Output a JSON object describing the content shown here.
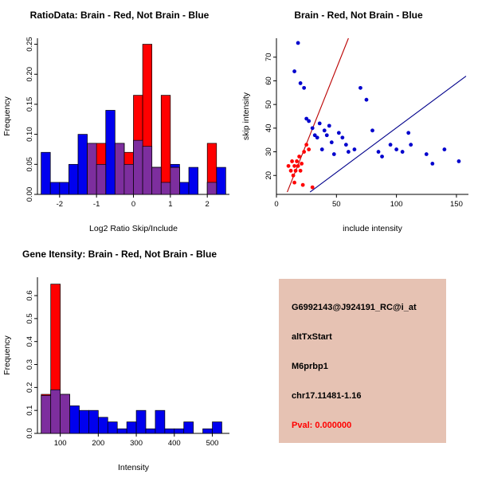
{
  "figure": {
    "background": "#FFFFFF"
  },
  "info_box": {
    "background": "#E6C2B3",
    "text_color": "#000000",
    "lines": [
      "G6992143@J924191_RC@i_at",
      "altTxStart",
      "M6prbp1",
      "chr17.11481-1.16"
    ],
    "pval": "Pval: 0.000000",
    "pval_color": "#FF0000"
  },
  "chart_data": [
    {
      "type": "bar",
      "subtype": "overlaid_histogram",
      "title": "RatioData: Brain - Red, Not Brain - Blue",
      "xlabel": "Log2 Ratio Skip/Include",
      "ylabel": "Frequency",
      "xlim": [
        -2.6,
        2.6
      ],
      "ylim": [
        0,
        0.26
      ],
      "xticks": [
        -2,
        -1,
        0,
        1,
        2
      ],
      "xtick_labels": [
        "-2",
        "-1",
        "0",
        "1",
        "2"
      ],
      "yticks": [
        0,
        0.05,
        0.1,
        0.15,
        0.2,
        0.25
      ],
      "ytick_labels": [
        "0.00",
        "0.05",
        "0.10",
        "0.15",
        "0.20",
        "0.25"
      ],
      "bin_width": 0.25,
      "overlap_color": "#7D2E9E",
      "legend_note": "Brain - Red, Not Brain - Blue",
      "series": [
        {
          "name": "Not Brain",
          "color": "#0000EE",
          "bin_start": -2.5,
          "values": [
            0.07,
            0.02,
            0.02,
            0.05,
            0.1,
            0.085,
            0.05,
            0.14,
            0.085,
            0.05,
            0.09,
            0.08,
            0.045,
            0.02,
            0.05,
            0.02,
            0.045,
            0,
            0.02,
            0.045
          ]
        },
        {
          "name": "Brain",
          "color": "#FF0000",
          "bin_start": -2.5,
          "values": [
            0,
            0,
            0,
            0,
            0,
            0.085,
            0.085,
            0,
            0.085,
            0.07,
            0.165,
            0.25,
            0.045,
            0.165,
            0.045,
            0,
            0,
            0,
            0.085,
            0
          ]
        }
      ]
    },
    {
      "type": "scatter",
      "title": "Brain - Red, Not Brain - Blue",
      "xlabel": "include intensity",
      "ylabel": "skip intensity",
      "xlim": [
        0,
        160
      ],
      "ylim": [
        12,
        78
      ],
      "xticks": [
        0,
        50,
        100,
        150
      ],
      "xtick_labels": [
        "0",
        "50",
        "100",
        "150"
      ],
      "yticks": [
        20,
        30,
        40,
        50,
        60,
        70
      ],
      "ytick_labels": [
        "20",
        "30",
        "40",
        "50",
        "60",
        "70"
      ],
      "series": [
        {
          "name": "Brain",
          "color": "#FF0000",
          "points": [
            [
              10,
              24
            ],
            [
              12,
              22
            ],
            [
              13,
              26
            ],
            [
              14,
              20
            ],
            [
              15,
              24
            ],
            [
              16,
              22
            ],
            [
              17,
              26
            ],
            [
              18,
              24
            ],
            [
              19,
              28
            ],
            [
              20,
              22
            ],
            [
              21,
              25
            ],
            [
              23,
              30
            ],
            [
              25,
              33
            ],
            [
              27,
              31
            ],
            [
              15,
              17
            ],
            [
              22,
              16
            ],
            [
              30,
              15
            ]
          ]
        },
        {
          "name": "Not Brain",
          "color": "#0000CD",
          "points": [
            [
              18,
              76
            ],
            [
              15,
              64
            ],
            [
              20,
              59
            ],
            [
              23,
              57
            ],
            [
              25,
              44
            ],
            [
              27,
              43
            ],
            [
              30,
              40
            ],
            [
              32,
              37
            ],
            [
              34,
              36
            ],
            [
              36,
              42
            ],
            [
              38,
              31
            ],
            [
              40,
              39
            ],
            [
              42,
              37
            ],
            [
              44,
              41
            ],
            [
              46,
              34
            ],
            [
              48,
              29
            ],
            [
              52,
              38
            ],
            [
              55,
              36
            ],
            [
              58,
              33
            ],
            [
              60,
              30
            ],
            [
              65,
              31
            ],
            [
              70,
              57
            ],
            [
              75,
              52
            ],
            [
              80,
              39
            ],
            [
              85,
              30
            ],
            [
              88,
              28
            ],
            [
              95,
              33
            ],
            [
              100,
              31
            ],
            [
              105,
              30
            ],
            [
              110,
              38
            ],
            [
              112,
              33
            ],
            [
              125,
              29
            ],
            [
              130,
              25
            ],
            [
              140,
              31
            ],
            [
              152,
              26
            ]
          ]
        }
      ],
      "fit_lines": [
        {
          "name": "brain-fit-line",
          "color": "#BB0000",
          "x1": 9,
          "y1": 13,
          "x2": 60,
          "y2": 78
        },
        {
          "name": "not-brain-fit-line",
          "color": "#00008B",
          "x1": 28,
          "y1": 13,
          "x2": 158,
          "y2": 62
        }
      ]
    },
    {
      "type": "bar",
      "subtype": "overlaid_histogram",
      "title": "Gene Itensity: Brain - Red, Not Brain - Blue",
      "xlabel": "Intensity",
      "ylabel": "Frequency",
      "xlim": [
        40,
        545
      ],
      "ylim": [
        0,
        0.68
      ],
      "xticks": [
        100,
        200,
        300,
        400,
        500
      ],
      "xtick_labels": [
        "100",
        "200",
        "300",
        "400",
        "500"
      ],
      "yticks": [
        0,
        0.1,
        0.2,
        0.3,
        0.4,
        0.5,
        0.6
      ],
      "ytick_labels": [
        "0.0",
        "0.1",
        "0.2",
        "0.3",
        "0.4",
        "0.5",
        "0.6"
      ],
      "bin_width": 25,
      "overlap_color": "#7D2E9E",
      "legend_note": "Brain - Red, Not Brain - Blue",
      "series": [
        {
          "name": "Not Brain",
          "color": "#0000EE",
          "bin_start": 50,
          "values": [
            0.165,
            0.19,
            0.17,
            0.12,
            0.1,
            0.1,
            0.07,
            0.05,
            0.02,
            0.05,
            0.1,
            0.02,
            0.1,
            0.02,
            0.02,
            0.05,
            0,
            0.02,
            0.05
          ]
        },
        {
          "name": "Brain",
          "color": "#FF0000",
          "bin_start": 50,
          "values": [
            0.17,
            0.65,
            0.17,
            0,
            0,
            0,
            0,
            0,
            0,
            0,
            0,
            0,
            0,
            0,
            0,
            0,
            0,
            0,
            0
          ]
        }
      ]
    }
  ]
}
